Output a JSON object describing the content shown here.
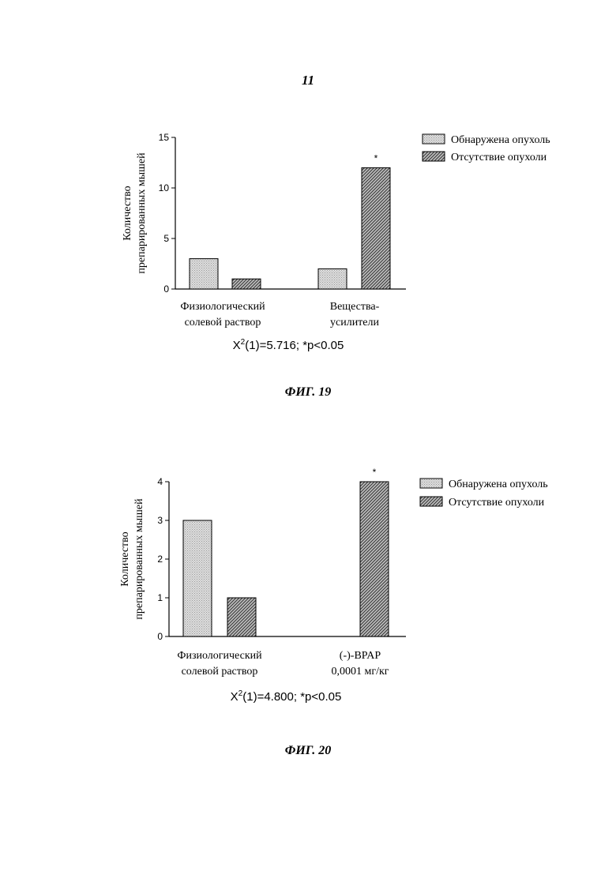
{
  "page_number": "11",
  "legend": {
    "series": [
      "Обнаружена опухоль",
      "Отсутствие опухоли"
    ]
  },
  "colors": {
    "series_1": "#d4d4d4",
    "series_2": "#7a7a7a",
    "stroke": "#000000"
  },
  "chart_data": [
    {
      "type": "bar",
      "caption": "ФИГ. 19",
      "ylabel": [
        "Количество",
        "препарированных мышей"
      ],
      "ylim": [
        0,
        15
      ],
      "yticks": [
        "0",
        "5",
        "10",
        "15"
      ],
      "categories": [
        [
          "Физиологический",
          "солевой раствор"
        ],
        [
          "Вещества-",
          "усилители"
        ]
      ],
      "series": [
        {
          "name": "Обнаружена опухоль",
          "values": [
            3,
            2
          ]
        },
        {
          "name": "Отсутствие опухоли",
          "values": [
            1,
            12
          ]
        }
      ],
      "annotations": [
        {
          "text": "*",
          "category": 1,
          "series": 1
        }
      ],
      "stat_label": {
        "base": "X",
        "sup": "2",
        "rest": "(1)=5.716; *p<0.05"
      },
      "legend_position": "top-right",
      "grid": false
    },
    {
      "type": "bar",
      "caption": "ФИГ. 20",
      "ylabel": [
        "Количество",
        "препарированных мышей"
      ],
      "ylim": [
        0,
        4
      ],
      "yticks": [
        "0",
        "1",
        "2",
        "3",
        "4"
      ],
      "categories": [
        [
          "Физиологический",
          "солевой раствор"
        ],
        [
          "(-)-BPAP",
          "0,0001 мг/кг"
        ]
      ],
      "series": [
        {
          "name": "Обнаружена опухоль",
          "values": [
            3,
            0
          ]
        },
        {
          "name": "Отсутствие опухоли",
          "values": [
            1,
            4
          ]
        }
      ],
      "annotations": [
        {
          "text": "*",
          "category": 1,
          "series": 1
        }
      ],
      "stat_label": {
        "base": "X",
        "sup": "2",
        "rest": "(1)=4.800; *p<0.05"
      },
      "legend_position": "top-right",
      "grid": false
    }
  ]
}
